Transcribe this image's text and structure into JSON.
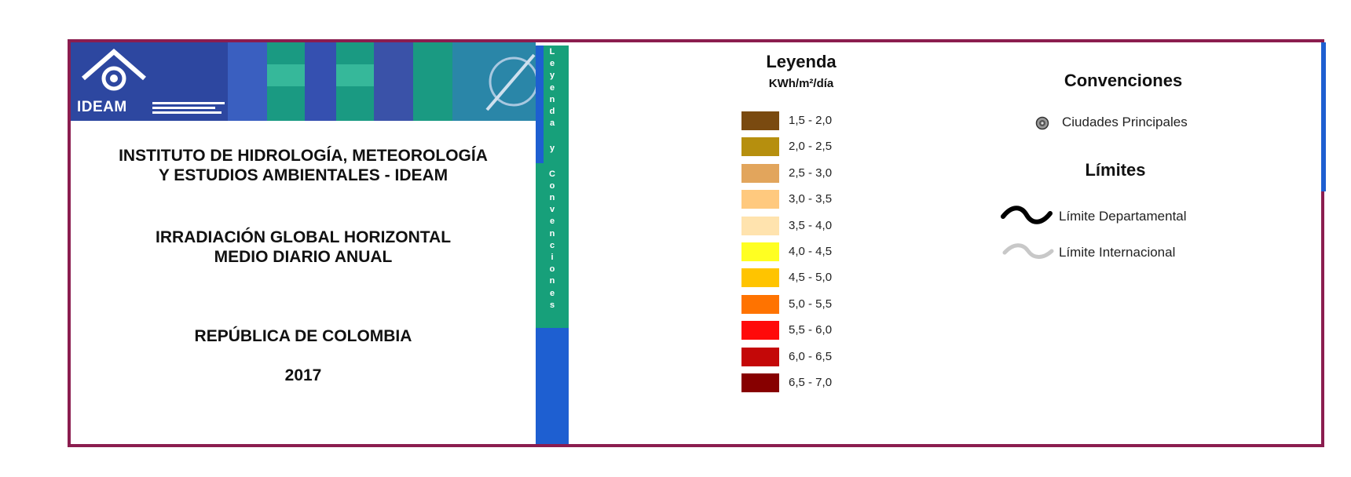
{
  "institute": {
    "brand": "IDEAM",
    "name_line1": "INSTITUTO DE HIDROLOGÍA, METEOROLOGÍA",
    "name_line2": "Y ESTUDIOS AMBIENTALES - IDEAM"
  },
  "map": {
    "title_line1": "IRRADIACIÓN GLOBAL HORIZONTAL",
    "title_line2": "MEDIO DIARIO ANUAL",
    "country": "REPÚBLICA DE COLOMBIA",
    "year": "2017"
  },
  "tab": {
    "label": "Leyenda y Convenciones"
  },
  "legend": {
    "title": "Leyenda",
    "unit": "KWh/m²/día",
    "items": [
      {
        "label": "1,5 - 2,0",
        "color": "#7a4a10"
      },
      {
        "label": "2,0 - 2,5",
        "color": "#b68f0e"
      },
      {
        "label": "2,5 - 3,0",
        "color": "#e2a55c"
      },
      {
        "label": "3,0 - 3,5",
        "color": "#ffc97e"
      },
      {
        "label": "3,5 - 4,0",
        "color": "#ffe3ae"
      },
      {
        "label": "4,0 - 4,5",
        "color": "#ffff22"
      },
      {
        "label": "4,5 - 5,0",
        "color": "#ffc400"
      },
      {
        "label": "5,0 - 5,5",
        "color": "#ff7300"
      },
      {
        "label": "5,5 - 6,0",
        "color": "#ff0a0a"
      },
      {
        "label": "6,0 - 6,5",
        "color": "#c40808"
      },
      {
        "label": "6,5 - 7,0",
        "color": "#870000"
      }
    ]
  },
  "conventions": {
    "title": "Convenciones",
    "city_label": "Ciudades Principales",
    "limits_title": "Límites",
    "departmental_label": "Límite Departamental",
    "international_label": "Límite Internacional",
    "departmental_color": "#000000",
    "international_color": "#c8c8c8"
  },
  "colors": {
    "frame": "#8b1d4f",
    "tab_blue": "#1e5fd1",
    "tab_green": "#17a07a"
  }
}
